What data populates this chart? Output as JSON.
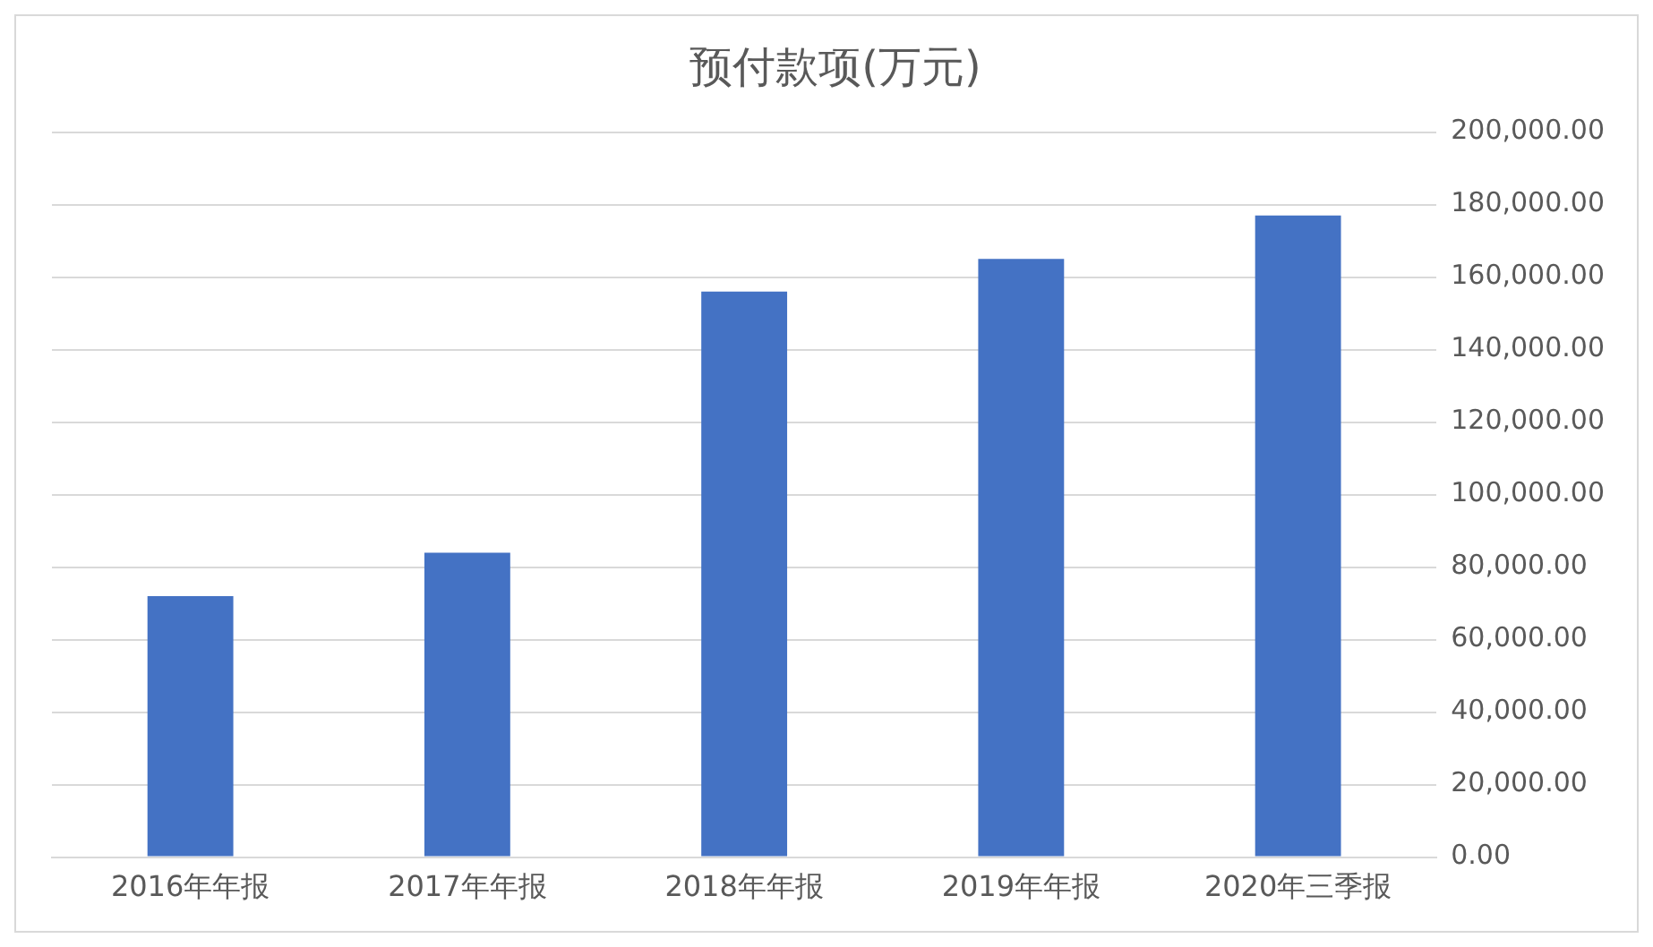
{
  "chart_data": {
    "type": "bar",
    "title": "预付款项(万元)",
    "categories": [
      "2016年年报",
      "2017年年报",
      "2018年年报",
      "2019年年报",
      "2020年三季报"
    ],
    "values": [
      72000,
      84000,
      156000,
      165000,
      177000
    ],
    "color": "#4472c4",
    "ylim": [
      0,
      200000
    ],
    "yticks": [
      {
        "value": 0,
        "label": "0.00"
      },
      {
        "value": 20000,
        "label": "20,000.00"
      },
      {
        "value": 40000,
        "label": "40,000.00"
      },
      {
        "value": 60000,
        "label": "60,000.00"
      },
      {
        "value": 80000,
        "label": "80,000.00"
      },
      {
        "value": 100000,
        "label": "100,000.00"
      },
      {
        "value": 120000,
        "label": "120,000.00"
      },
      {
        "value": 140000,
        "label": "140,000.00"
      },
      {
        "value": 160000,
        "label": "160,000.00"
      },
      {
        "value": 180000,
        "label": "180,000.00"
      },
      {
        "value": 200000,
        "label": "200,000.00"
      }
    ],
    "grid": "y",
    "legend": false
  }
}
